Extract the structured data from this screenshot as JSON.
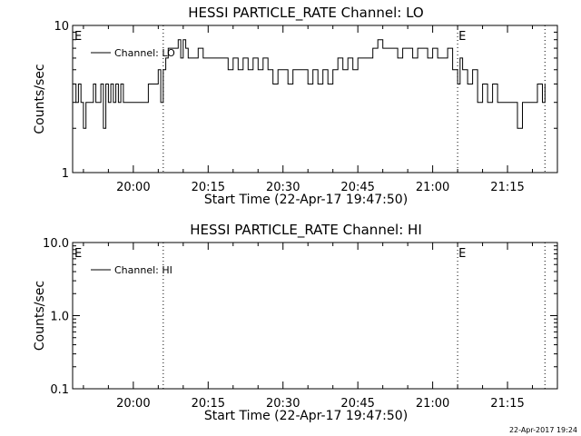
{
  "timestamp": "22-Apr-2017 19:24",
  "chart_data": [
    {
      "type": "line",
      "title": "HESSI PARTICLE_RATE Channel: LO",
      "xlabel": "Start Time (22-Apr-17 19:47:50)",
      "ylabel": "Counts/sec",
      "yscale": "log",
      "ylim": [
        1,
        10
      ],
      "xlim": [
        "19:47:50",
        "21:25:00"
      ],
      "y_ticks": [
        "1",
        "10"
      ],
      "x_ticks": [
        "20:00",
        "20:15",
        "20:30",
        "20:45",
        "21:00",
        "21:15"
      ],
      "event_markers": [
        {
          "time": "20:06:00",
          "label": ""
        },
        {
          "time": "21:05:00",
          "label": "E"
        },
        {
          "time": "21:22:30",
          "label": ""
        }
      ],
      "start_marker_label": "E",
      "legend": "top-left",
      "series": [
        {
          "name": "Channel: LO",
          "x": [
            "19:47:50",
            "19:48:30",
            "19:49:00",
            "19:49:30",
            "19:50:00",
            "19:50:30",
            "19:51:00",
            "19:51:30",
            "19:52:00",
            "19:52:30",
            "19:53:00",
            "19:53:30",
            "19:54:00",
            "19:54:30",
            "19:55:00",
            "19:55:30",
            "19:56:00",
            "19:56:30",
            "19:57:00",
            "19:57:30",
            "19:58:00",
            "19:59:00",
            "20:00:00",
            "20:01:00",
            "20:02:00",
            "20:03:00",
            "20:04:00",
            "20:05:00",
            "20:05:30",
            "20:06:00",
            "20:06:30",
            "20:07:00",
            "20:08:00",
            "20:09:00",
            "20:09:30",
            "20:10:00",
            "20:10:30",
            "20:11:00",
            "20:12:00",
            "20:13:00",
            "20:14:00",
            "20:15:00",
            "20:16:00",
            "20:17:00",
            "20:18:00",
            "20:19:00",
            "20:20:00",
            "20:21:00",
            "20:22:00",
            "20:23:00",
            "20:24:00",
            "20:25:00",
            "20:26:00",
            "20:27:00",
            "20:28:00",
            "20:29:00",
            "20:30:00",
            "20:31:00",
            "20:32:00",
            "20:33:00",
            "20:34:00",
            "20:35:00",
            "20:36:00",
            "20:37:00",
            "20:38:00",
            "20:39:00",
            "20:40:00",
            "20:41:00",
            "20:42:00",
            "20:43:00",
            "20:44:00",
            "20:45:00",
            "20:46:00",
            "20:47:00",
            "20:48:00",
            "20:49:00",
            "20:50:00",
            "20:51:00",
            "20:52:00",
            "20:53:00",
            "20:54:00",
            "20:55:00",
            "20:56:00",
            "20:57:00",
            "20:58:00",
            "20:59:00",
            "21:00:00",
            "21:01:00",
            "21:02:00",
            "21:03:00",
            "21:04:00",
            "21:05:00",
            "21:05:30",
            "21:06:00",
            "21:06:30",
            "21:07:00",
            "21:08:00",
            "21:09:00",
            "21:10:00",
            "21:11:00",
            "21:12:00",
            "21:13:00",
            "21:14:00",
            "21:15:00",
            "21:16:00",
            "21:17:00",
            "21:18:00",
            "21:19:00",
            "21:20:00",
            "21:21:00",
            "21:22:00",
            "21:22:30"
          ],
          "y": [
            4,
            3,
            4,
            3,
            2,
            3,
            3,
            3,
            4,
            3,
            3,
            4,
            2,
            4,
            3,
            4,
            3,
            4,
            3,
            4,
            3,
            3,
            3,
            3,
            3,
            4,
            4,
            5,
            3,
            5,
            6,
            7,
            7,
            8,
            6,
            8,
            7,
            6,
            6,
            7,
            6,
            6,
            6,
            6,
            6,
            5,
            6,
            5,
            6,
            5,
            6,
            5,
            6,
            5,
            4,
            5,
            5,
            4,
            5,
            5,
            5,
            4,
            5,
            4,
            5,
            4,
            5,
            6,
            5,
            6,
            5,
            6,
            6,
            6,
            7,
            8,
            7,
            7,
            7,
            6,
            7,
            7,
            6,
            7,
            7,
            6,
            7,
            6,
            6,
            7,
            5,
            4,
            6,
            5,
            5,
            4,
            5,
            3,
            4,
            3,
            4,
            3,
            3,
            3,
            3,
            2,
            3,
            3,
            3,
            4,
            3,
            4
          ]
        }
      ]
    },
    {
      "type": "line",
      "title": "HESSI PARTICLE_RATE Channel: HI",
      "xlabel": "Start Time (22-Apr-17 19:47:50)",
      "ylabel": "Counts/sec",
      "yscale": "log",
      "ylim": [
        0.1,
        10.0
      ],
      "xlim": [
        "19:47:50",
        "21:25:00"
      ],
      "y_ticks": [
        "0.1",
        "1.0",
        "10.0"
      ],
      "x_ticks": [
        "20:00",
        "20:15",
        "20:30",
        "20:45",
        "21:00",
        "21:15"
      ],
      "event_markers": [
        {
          "time": "20:06:00",
          "label": ""
        },
        {
          "time": "21:05:00",
          "label": "E"
        },
        {
          "time": "21:22:30",
          "label": ""
        }
      ],
      "start_marker_label": "E",
      "legend": "top-left",
      "series": [
        {
          "name": "Channel: HI",
          "x": [],
          "y": []
        }
      ]
    }
  ]
}
